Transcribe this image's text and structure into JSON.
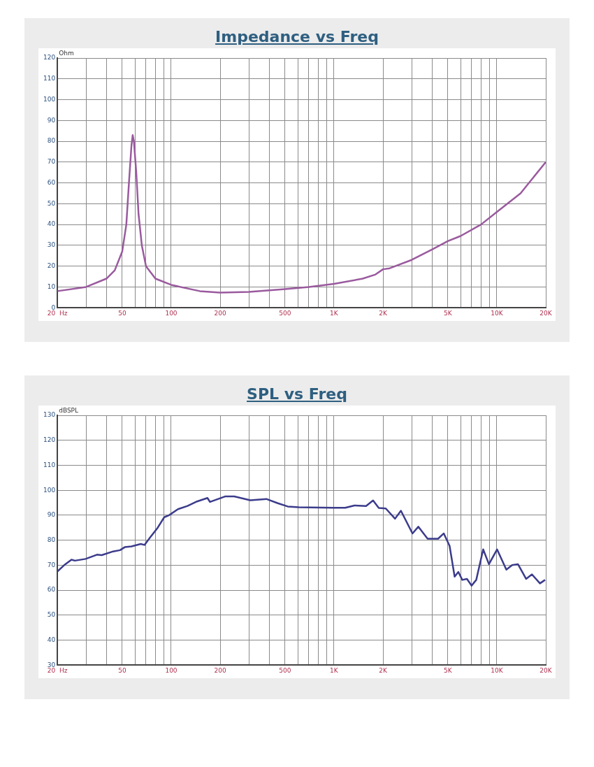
{
  "chart_data": [
    {
      "type": "line",
      "title": "Impedance vs Freq",
      "ylabel": "Ohm",
      "xlim": [
        20,
        20000
      ],
      "ylim": [
        0,
        120
      ],
      "xticks": [
        {
          "value": 20,
          "label": "20  Hz"
        },
        {
          "value": 30,
          "label": null
        },
        {
          "value": 40,
          "label": null
        },
        {
          "value": 50,
          "label": "50"
        },
        {
          "value": 60,
          "label": null
        },
        {
          "value": 70,
          "label": null
        },
        {
          "value": 80,
          "label": null
        },
        {
          "value": 90,
          "label": null
        },
        {
          "value": 100,
          "label": "100"
        },
        {
          "value": 200,
          "label": "200"
        },
        {
          "value": 300,
          "label": null
        },
        {
          "value": 400,
          "label": null
        },
        {
          "value": 500,
          "label": "500"
        },
        {
          "value": 600,
          "label": null
        },
        {
          "value": 700,
          "label": null
        },
        {
          "value": 800,
          "label": null
        },
        {
          "value": 900,
          "label": null
        },
        {
          "value": 1000,
          "label": "1K"
        },
        {
          "value": 2000,
          "label": "2K"
        },
        {
          "value": 3000,
          "label": null
        },
        {
          "value": 4000,
          "label": null
        },
        {
          "value": 5000,
          "label": "5K"
        },
        {
          "value": 6000,
          "label": null
        },
        {
          "value": 7000,
          "label": null
        },
        {
          "value": 8000,
          "label": null
        },
        {
          "value": 9000,
          "label": null
        },
        {
          "value": 10000,
          "label": "10K"
        },
        {
          "value": 20000,
          "label": "20K"
        }
      ],
      "yticks": [
        0,
        10,
        20,
        30,
        40,
        50,
        60,
        70,
        80,
        90,
        100,
        110,
        120
      ],
      "log": "x",
      "grid": true,
      "legend": false,
      "series": [
        {
          "color": "#9a5a9e",
          "x": [
            20,
            30,
            40,
            45,
            50,
            53,
            55,
            57,
            58,
            59,
            61,
            63,
            66,
            70,
            80,
            100,
            150,
            200,
            300,
            500,
            700,
            1000,
            1500,
            1800,
            2000,
            2200,
            3000,
            4000,
            5000,
            6000,
            8000,
            10000,
            14000,
            20000
          ],
          "values": [
            8,
            10,
            14,
            18,
            27,
            40,
            60,
            78,
            83,
            80,
            65,
            45,
            30,
            20,
            14,
            11,
            8,
            7.3,
            7.6,
            9,
            10,
            11.5,
            14,
            16,
            18.5,
            19,
            23,
            28,
            32,
            34.5,
            40,
            46,
            55,
            70
          ]
        }
      ]
    },
    {
      "type": "line",
      "title": "SPL vs Freq",
      "ylabel": "dBSPL",
      "xlim": [
        20,
        20000
      ],
      "ylim": [
        30,
        130
      ],
      "xticks": [
        {
          "value": 20,
          "label": "20  Hz"
        },
        {
          "value": 30,
          "label": null
        },
        {
          "value": 40,
          "label": null
        },
        {
          "value": 50,
          "label": "50"
        },
        {
          "value": 60,
          "label": null
        },
        {
          "value": 70,
          "label": null
        },
        {
          "value": 80,
          "label": null
        },
        {
          "value": 90,
          "label": null
        },
        {
          "value": 100,
          "label": "100"
        },
        {
          "value": 200,
          "label": "200"
        },
        {
          "value": 300,
          "label": null
        },
        {
          "value": 400,
          "label": null
        },
        {
          "value": 500,
          "label": "500"
        },
        {
          "value": 600,
          "label": null
        },
        {
          "value": 700,
          "label": null
        },
        {
          "value": 800,
          "label": null
        },
        {
          "value": 900,
          "label": null
        },
        {
          "value": 1000,
          "label": "1K"
        },
        {
          "value": 2000,
          "label": "2K"
        },
        {
          "value": 3000,
          "label": null
        },
        {
          "value": 4000,
          "label": null
        },
        {
          "value": 5000,
          "label": "5K"
        },
        {
          "value": 6000,
          "label": null
        },
        {
          "value": 7000,
          "label": null
        },
        {
          "value": 8000,
          "label": null
        },
        {
          "value": 9000,
          "label": null
        },
        {
          "value": 10000,
          "label": "10K"
        },
        {
          "value": 20000,
          "label": "20K"
        }
      ],
      "yticks": [
        30,
        40,
        50,
        60,
        70,
        80,
        90,
        100,
        110,
        120,
        130
      ],
      "log": "x",
      "grid": true,
      "legend": false,
      "series": [
        {
          "color": "#3c3c8c",
          "x": [
            20,
            22,
            24.4,
            25.6,
            29.8,
            35,
            37.4,
            44,
            48.5,
            51.8,
            57,
            65,
            68.5,
            74,
            82,
            90.6,
            97,
            110,
            126,
            144,
            167,
            173,
            214,
            244,
            306,
            384,
            452,
            520,
            608,
            994,
            1172,
            1336,
            1574,
            1738,
            1884,
            2080,
            2372,
            2577,
            3035,
            3296,
            3758,
            4360,
            4725,
            5130,
            5510,
            5807,
            6140,
            6560,
            7000,
            7480,
            8250,
            8950,
            10040,
            11450,
            12420,
            13490,
            15140,
            16440,
            18420,
            19800
          ],
          "values": [
            67.5,
            70,
            72.2,
            71.8,
            72.5,
            74.2,
            74,
            75.5,
            76,
            77.2,
            77.5,
            78.5,
            78.1,
            81,
            84.7,
            89.2,
            90,
            92.4,
            93.7,
            95.5,
            96.9,
            95.3,
            97.5,
            97.5,
            96,
            96.5,
            94.8,
            93.5,
            93.2,
            93,
            93,
            93.9,
            93.7,
            95.9,
            92.9,
            92.7,
            88.6,
            91.8,
            82.7,
            85.4,
            80.6,
            80.6,
            82.7,
            77.7,
            65.4,
            67.3,
            64.1,
            64.5,
            61.8,
            64.1,
            76.3,
            70.4,
            76.3,
            68.2,
            70,
            70.4,
            64.5,
            66.3,
            62.7,
            64.1
          ]
        }
      ]
    }
  ]
}
